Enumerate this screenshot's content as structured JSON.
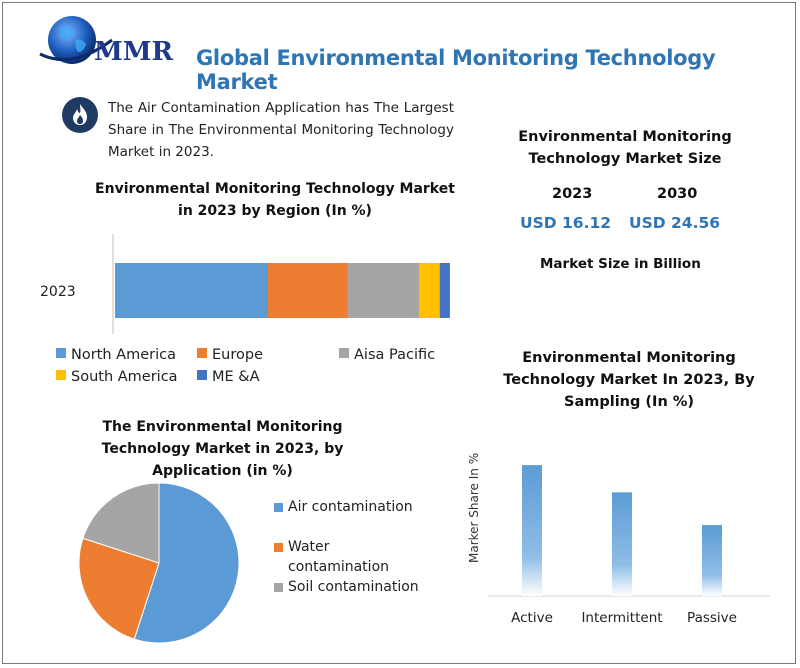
{
  "header": {
    "logo_text": "MMR",
    "title": "Global Environmental Monitoring Technology Market"
  },
  "highlight": {
    "icon": "flame-icon",
    "text": "The Air Contamination Application has The Largest Share in The Environmental Monitoring Technology Market in 2023."
  },
  "market_size": {
    "title_line1": "Environmental Monitoring",
    "title_line2": "Technology Market Size",
    "year_a": "2023",
    "year_b": "2030",
    "value_a": "USD 16.12",
    "value_b": "USD 24.56",
    "note": "Market Size in Billion"
  },
  "colors": {
    "accent": "#2e75b6",
    "north_america": "#5b9bd5",
    "europe": "#ed7d31",
    "asia_pacific": "#a5a5a5",
    "south_america": "#ffc000",
    "me_a": "#4472c4"
  },
  "chart_data": [
    {
      "id": "region",
      "type": "bar",
      "orientation": "horizontal-stacked",
      "title_line1": "Environmental Monitoring Technology Market",
      "title_line2": "in 2023 by Region (In %)",
      "categories": [
        "2023"
      ],
      "xlim": [
        0,
        100
      ],
      "series": [
        {
          "name": "North America",
          "values": [
            45
          ],
          "color": "#5b9bd5"
        },
        {
          "name": "Europe",
          "values": [
            23.5
          ],
          "color": "#ed7d31"
        },
        {
          "name": "Aisa Pacific",
          "values": [
            21
          ],
          "color": "#a5a5a5"
        },
        {
          "name": "South America",
          "values": [
            6
          ],
          "color": "#ffc000"
        },
        {
          "name": "ME &A",
          "values": [
            3
          ],
          "color": "#4472c4"
        }
      ],
      "legend": "bottom"
    },
    {
      "id": "application",
      "type": "pie",
      "title_line1": "The Environmental Monitoring",
      "title_line2": "Technology Market in 2023, by",
      "title_line3": "Application (in %)",
      "slices": [
        {
          "label": "Air contamination",
          "value": 55,
          "color": "#5b9bd5"
        },
        {
          "label_line1": "Water",
          "label_line2": "contamination",
          "value": 25,
          "color": "#ed7d31"
        },
        {
          "label": "Soil contamination",
          "value": 20,
          "color": "#a5a5a5"
        }
      ],
      "legend": "right"
    },
    {
      "id": "sampling",
      "type": "bar",
      "title_line1": "Environmental Monitoring",
      "title_line2": "Technology Market In 2023, By",
      "title_line3": "Sampling (In %)",
      "ylabel": "Marker Share In %",
      "categories": [
        "Active",
        "Intermittent",
        "Passive"
      ],
      "values": [
        48,
        38,
        26
      ],
      "ylim": [
        0,
        55
      ],
      "color": "#5b9bd5",
      "grid": false
    }
  ]
}
